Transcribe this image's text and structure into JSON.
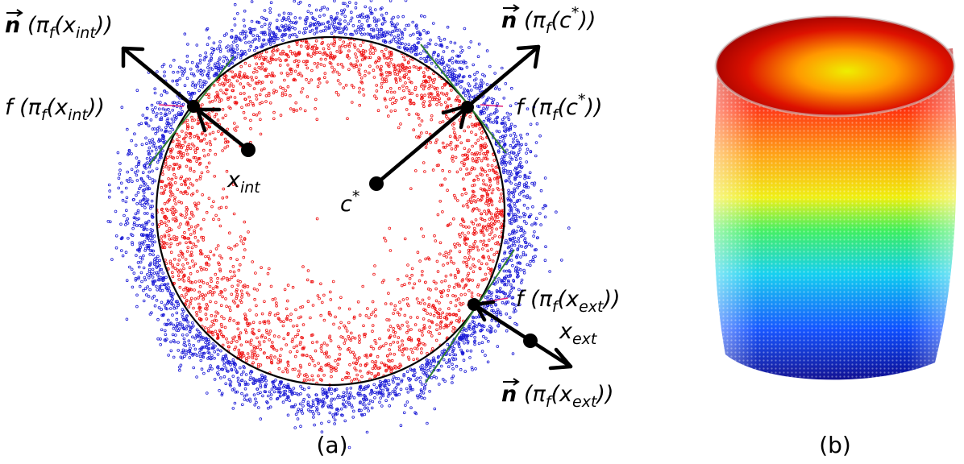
{
  "panel_a": {
    "caption": "(a)",
    "labels": {
      "n_int": {
        "pre": "(π",
        "sub1": "f",
        "mid": "(x",
        "sub2": "int",
        "post": "))"
      },
      "f_int": {
        "pre": "f (π",
        "sub1": "f",
        "mid": "(x",
        "sub2": "int",
        "post": "))"
      },
      "x_int": {
        "base": "x",
        "sub": "int"
      },
      "c_star": {
        "base": "c",
        "sup": "*"
      },
      "n_c": {
        "pre": "(π",
        "sub1": "f",
        "mid": "(c",
        "sup": "*",
        "post": "))"
      },
      "f_c": {
        "pre": "f (π",
        "sub1": "f",
        "mid": "(c",
        "sup": "*",
        "post": "))"
      },
      "f_ext": {
        "pre": "f (π",
        "sub1": "f",
        "mid": "(x",
        "sub2": "ext",
        "post": "))"
      },
      "x_ext": {
        "base": "x",
        "sub": "ext"
      },
      "n_ext": {
        "pre": "(π",
        "sub1": "f",
        "mid": "(x",
        "sub2": "ext",
        "post": "))"
      },
      "n_symbol": "n"
    },
    "colors": {
      "interior_points": "#ee1111",
      "exterior_points": "#1a1ad6",
      "tangent_lines": "#2e7d32",
      "marker": "#e0207a"
    }
  },
  "panel_b": {
    "caption": "(b)",
    "colormap": [
      "#00008b",
      "#0044ff",
      "#00ccee",
      "#33ee55",
      "#eeee00",
      "#ff9900",
      "#ff2200",
      "#aa0000"
    ]
  }
}
